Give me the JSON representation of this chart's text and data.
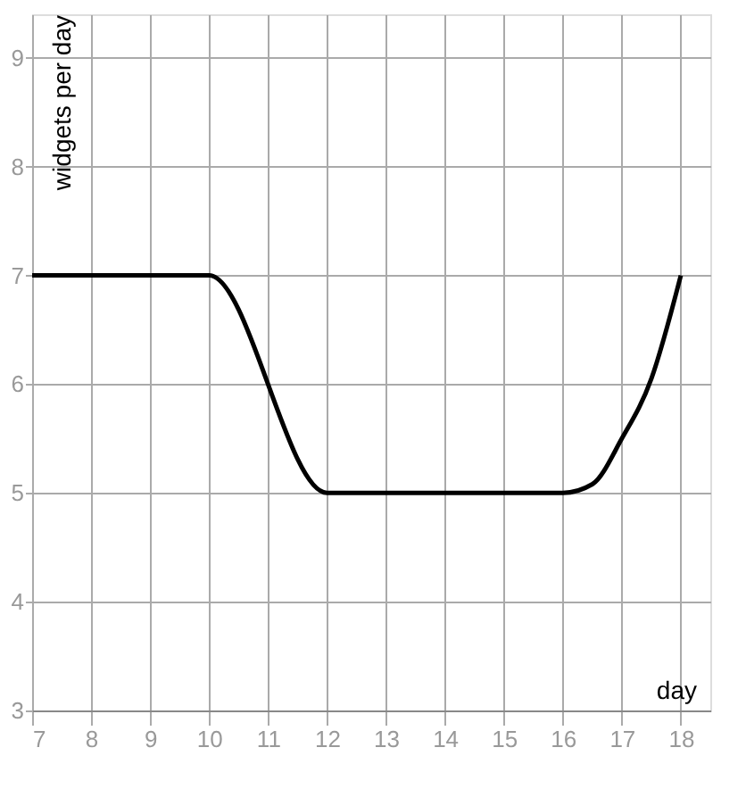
{
  "chart_data": {
    "type": "line",
    "xlabel": "day",
    "ylabel": "widgets per day",
    "x": [
      7,
      10,
      12,
      16,
      16.5,
      17,
      17.5,
      18
    ],
    "series": [
      {
        "color": "#000000",
        "values": [
          7,
          7,
          5,
          5,
          5.08,
          5.5,
          6.05,
          7
        ]
      }
    ],
    "xlim": [
      7,
      18.5
    ],
    "ylim": [
      3,
      9.4
    ],
    "xticks": [
      7,
      8,
      9,
      10,
      11,
      12,
      13,
      14,
      15,
      16,
      17,
      18
    ],
    "yticks": [
      3,
      4,
      5,
      6,
      7,
      8,
      9
    ],
    "grid": true,
    "marker": "none",
    "line_style": "solid"
  }
}
